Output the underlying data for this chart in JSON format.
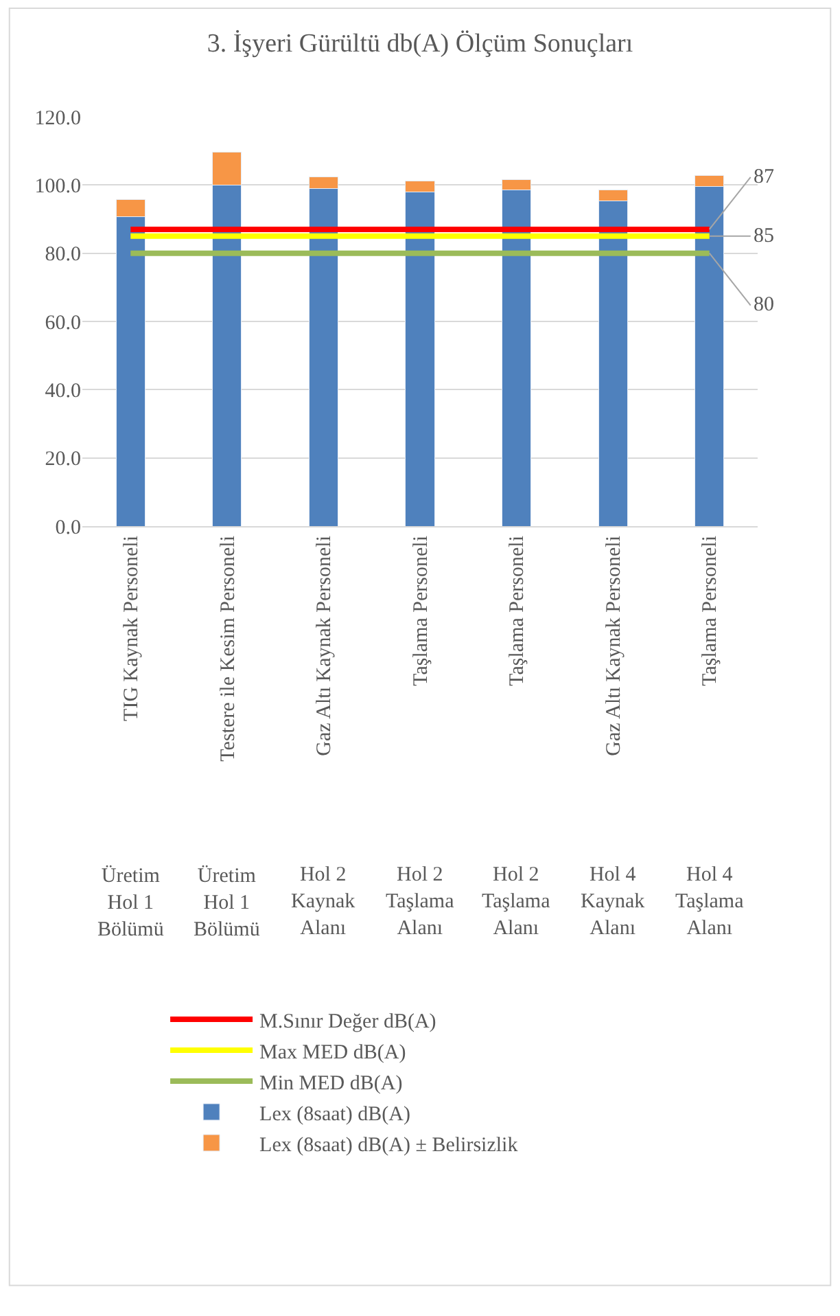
{
  "chart_data": {
    "type": "bar",
    "title": "3. İşyeri Gürültü db(A) Ölçüm Sonuçları",
    "categories": [
      "TIG Kaynak Personeli",
      "Testere ile Kesim Personeli",
      "Gaz Altı Kaynak Personeli",
      "Taşlama Personeli",
      "Taşlama Personeli",
      "Gaz Altı Kaynak Personeli",
      "Taşlama Personeli"
    ],
    "annotations": [
      "Üretim Hol 1 Bölümü",
      "Üretim Hol 1 Bölümü",
      "Hol 2 Kaynak Alanı",
      "Hol 2 Taşlama Alanı",
      "Hol 2 Taşlama Alanı",
      "Hol 4 Kaynak Alanı",
      "Hol 4 Taşlama Alanı"
    ],
    "stacked": true,
    "series": [
      {
        "name": "Lex (8saat) dB(A)",
        "color": "#4f81bd",
        "values": [
          90.7,
          100.0,
          99.0,
          98.0,
          98.6,
          95.4,
          99.6
        ]
      },
      {
        "name": "Lex (8saat) dB(A) ± Belirsizlik",
        "color": "#f79646",
        "values": [
          5.1,
          9.6,
          3.3,
          3.1,
          2.9,
          3.2,
          3.2
        ]
      },
      {
        "name": "Min MED dB(A)",
        "type": "line",
        "color": "#9bbb59",
        "values": [
          80,
          80,
          80,
          80,
          80,
          80,
          80
        ],
        "value_labels": [
          null,
          null,
          null,
          null,
          null,
          null,
          "80"
        ]
      },
      {
        "name": "Max MED dB(A)",
        "type": "line",
        "color": "#ffff00",
        "values": [
          85,
          85,
          85,
          85,
          85,
          85,
          85
        ],
        "value_labels": [
          null,
          null,
          null,
          null,
          null,
          null,
          "85"
        ]
      },
      {
        "name": "M.Sınır Değer dB(A)",
        "type": "line",
        "color": "#ff0000",
        "values": [
          87,
          87,
          87,
          87,
          87,
          87,
          87
        ],
        "value_labels": [
          null,
          null,
          null,
          null,
          null,
          null,
          "87"
        ]
      }
    ],
    "ylim": [
      0,
      120
    ],
    "yticks": [
      {
        "value": 0,
        "label": "0.0"
      },
      {
        "value": 20,
        "label": "20.0"
      },
      {
        "value": 40,
        "label": "40.0"
      },
      {
        "value": 60,
        "label": "60.0"
      },
      {
        "value": 80,
        "label": "80.0"
      },
      {
        "value": 100,
        "label": "100.0"
      },
      {
        "value": 120,
        "label": "120.0"
      }
    ],
    "grid": "y",
    "legend": "bottom"
  }
}
